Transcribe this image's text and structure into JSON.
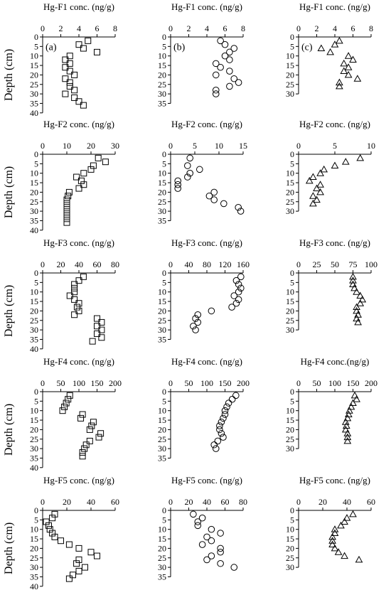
{
  "figure": {
    "ylabel": "Depth (cm)"
  },
  "panel_letters": [
    "(a)",
    "(b)",
    "(c)"
  ],
  "chart_data": [
    {
      "type": "scatter",
      "row": 0,
      "col": 0,
      "panel": "(a)",
      "title": "Hg-F1 conc. (ng/g)",
      "xlabel": "Hg-F1 conc. (ng/g)",
      "ylabel": "Depth (cm)",
      "marker": "square",
      "xlim": [
        0,
        8
      ],
      "xticks": [
        0,
        2,
        4,
        6,
        8
      ],
      "ylim": [
        0,
        40
      ],
      "yticks": [
        0,
        5,
        10,
        15,
        20,
        25,
        30,
        35,
        40
      ],
      "points": [
        [
          5.0,
          2
        ],
        [
          4.0,
          4
        ],
        [
          4.5,
          6
        ],
        [
          6.0,
          8
        ],
        [
          3.0,
          10
        ],
        [
          2.5,
          12
        ],
        [
          3.0,
          14
        ],
        [
          2.5,
          16
        ],
        [
          3.0,
          18
        ],
        [
          3.5,
          20
        ],
        [
          2.5,
          22
        ],
        [
          3.0,
          24
        ],
        [
          3.0,
          26
        ],
        [
          3.5,
          28
        ],
        [
          2.5,
          30
        ],
        [
          3.5,
          32
        ],
        [
          4.0,
          34
        ],
        [
          4.5,
          36
        ]
      ]
    },
    {
      "type": "scatter",
      "row": 0,
      "col": 1,
      "panel": "(b)",
      "title": "Hg-F1 conc. (ng/g)",
      "xlabel": "Hg-F1 conc. (ng/g)",
      "ylabel": "Depth (cm)",
      "marker": "circle",
      "xlim": [
        0,
        8
      ],
      "xticks": [
        0,
        2,
        4,
        6,
        8
      ],
      "ylim": [
        0,
        35
      ],
      "yticks": [
        0,
        5,
        10,
        15,
        20,
        25,
        30,
        35
      ],
      "points": [
        [
          5.5,
          2
        ],
        [
          6.0,
          4
        ],
        [
          7.0,
          6
        ],
        [
          6.5,
          8
        ],
        [
          6.0,
          10
        ],
        [
          6.5,
          12
        ],
        [
          5.0,
          14
        ],
        [
          5.5,
          16
        ],
        [
          6.5,
          18
        ],
        [
          5.0,
          20
        ],
        [
          7.0,
          22
        ],
        [
          7.5,
          24
        ],
        [
          6.5,
          26
        ],
        [
          5.0,
          28
        ],
        [
          5.0,
          30
        ]
      ]
    },
    {
      "type": "scatter",
      "row": 0,
      "col": 2,
      "panel": "(c)",
      "title": "Hg-F1 conc. (ng/g)",
      "xlabel": "Hg-F1 conc. (ng/g)",
      "ylabel": "Depth (cm)",
      "marker": "triangle",
      "xlim": [
        0,
        8
      ],
      "xticks": [
        0,
        2,
        4,
        6,
        8
      ],
      "ylim": [
        0,
        30
      ],
      "yticks": [
        0,
        5,
        10,
        15,
        20,
        25,
        30
      ],
      "points": [
        [
          4.5,
          2
        ],
        [
          4.0,
          4
        ],
        [
          2.5,
          6
        ],
        [
          3.5,
          8
        ],
        [
          5.5,
          10
        ],
        [
          6.0,
          12
        ],
        [
          5.0,
          14
        ],
        [
          5.5,
          16
        ],
        [
          5.0,
          18
        ],
        [
          5.5,
          20
        ],
        [
          6.5,
          22
        ],
        [
          4.5,
          24
        ],
        [
          4.5,
          26
        ]
      ]
    },
    {
      "type": "scatter",
      "row": 1,
      "col": 0,
      "title": "Hg-F2 conc. (ng/g)",
      "xlabel": "Hg-F2 conc. (ng/g)",
      "ylabel": "Depth (cm)",
      "marker": "square",
      "xlim": [
        0,
        30
      ],
      "xticks": [
        0,
        10,
        20,
        30
      ],
      "ylim": [
        0,
        40
      ],
      "yticks": [
        0,
        5,
        10,
        15,
        20,
        25,
        30,
        35,
        40
      ],
      "points": [
        [
          23,
          2
        ],
        [
          26,
          4
        ],
        [
          21,
          6
        ],
        [
          20,
          8
        ],
        [
          17,
          10
        ],
        [
          14,
          12
        ],
        [
          16,
          14
        ],
        [
          17,
          16
        ],
        [
          15,
          18
        ],
        [
          11,
          20
        ],
        [
          10.5,
          22
        ],
        [
          10,
          24
        ],
        [
          10,
          26
        ],
        [
          10,
          28
        ],
        [
          10,
          30
        ],
        [
          10,
          32
        ],
        [
          10,
          34
        ],
        [
          10,
          36
        ]
      ]
    },
    {
      "type": "scatter",
      "row": 1,
      "col": 1,
      "title": "Hg-F2 conc. (ng/g)",
      "xlabel": "Hg-F2 conc. (ng/g)",
      "ylabel": "Depth (cm)",
      "marker": "circle",
      "xlim": [
        0,
        15
      ],
      "xticks": [
        0,
        5,
        10,
        15
      ],
      "ylim": [
        0,
        35
      ],
      "yticks": [
        0,
        5,
        10,
        15,
        20,
        25,
        30,
        35
      ],
      "points": [
        [
          4,
          2
        ],
        [
          3.5,
          6
        ],
        [
          6,
          8
        ],
        [
          4,
          10
        ],
        [
          3.5,
          12
        ],
        [
          1.5,
          14
        ],
        [
          1.5,
          16
        ],
        [
          1.5,
          18
        ],
        [
          9,
          20
        ],
        [
          8,
          22
        ],
        [
          9,
          24
        ],
        [
          11,
          26
        ],
        [
          14,
          28
        ],
        [
          14.5,
          30
        ]
      ]
    },
    {
      "type": "scatter",
      "row": 1,
      "col": 2,
      "title": "Hg-F2 conc. (ng/g)",
      "xlabel": "Hg-F2 conc. (ng/g)",
      "ylabel": "Depth (cm)",
      "marker": "triangle",
      "xlim": [
        0,
        10
      ],
      "xticks": [
        0,
        5,
        10
      ],
      "ylim": [
        0,
        30
      ],
      "yticks": [
        0,
        5,
        10,
        15,
        20,
        25,
        30
      ],
      "points": [
        [
          8.5,
          2
        ],
        [
          6.5,
          4
        ],
        [
          5,
          6
        ],
        [
          3.5,
          8
        ],
        [
          3,
          10
        ],
        [
          2,
          12
        ],
        [
          1.5,
          14
        ],
        [
          3,
          16
        ],
        [
          2.5,
          18
        ],
        [
          3,
          20
        ],
        [
          2,
          22
        ],
        [
          2.5,
          24
        ],
        [
          2,
          26
        ]
      ]
    },
    {
      "type": "scatter",
      "row": 2,
      "col": 0,
      "title": "Hg-F3 conc. (ng/g)",
      "xlabel": "Hg-F3 conc. (ng/g)",
      "ylabel": "Depth (cm)",
      "marker": "square",
      "xlim": [
        0,
        80
      ],
      "xticks": [
        0,
        20,
        40,
        60,
        80
      ],
      "ylim": [
        0,
        40
      ],
      "yticks": [
        0,
        5,
        10,
        15,
        20,
        25,
        30,
        35,
        40
      ],
      "points": [
        [
          45,
          2
        ],
        [
          40,
          4
        ],
        [
          35,
          6
        ],
        [
          35,
          8
        ],
        [
          35,
          10
        ],
        [
          30,
          12
        ],
        [
          35,
          14
        ],
        [
          40,
          16
        ],
        [
          38,
          18
        ],
        [
          40,
          20
        ],
        [
          35,
          22
        ],
        [
          60,
          24
        ],
        [
          65,
          26
        ],
        [
          60,
          28
        ],
        [
          65,
          30
        ],
        [
          60,
          32
        ],
        [
          65,
          34
        ],
        [
          55,
          36
        ]
      ]
    },
    {
      "type": "scatter",
      "row": 2,
      "col": 1,
      "title": "Hg-F3 conc. (ng/g)",
      "xlabel": "Hg-F3 conc. (ng/g)",
      "ylabel": "Depth (cm)",
      "marker": "circle",
      "xlim": [
        0,
        160
      ],
      "xticks": [
        0,
        40,
        80,
        120,
        160
      ],
      "ylim": [
        0,
        35
      ],
      "yticks": [
        0,
        5,
        10,
        15,
        20,
        25,
        30,
        35
      ],
      "points": [
        [
          155,
          2
        ],
        [
          145,
          4
        ],
        [
          150,
          6
        ],
        [
          155,
          8
        ],
        [
          150,
          10
        ],
        [
          140,
          12
        ],
        [
          150,
          14
        ],
        [
          145,
          16
        ],
        [
          135,
          18
        ],
        [
          90,
          20
        ],
        [
          60,
          22
        ],
        [
          55,
          24
        ],
        [
          60,
          26
        ],
        [
          50,
          28
        ],
        [
          55,
          30
        ]
      ]
    },
    {
      "type": "scatter",
      "row": 2,
      "col": 2,
      "title": "Hg-F3 conc. (ng/g)",
      "xlabel": "Hg-F3 conc. (ng/g)",
      "ylabel": "Depth (cm)",
      "marker": "triangle",
      "xlim": [
        0,
        100
      ],
      "xticks": [
        0,
        25,
        50,
        75,
        100
      ],
      "ylim": [
        0,
        30
      ],
      "yticks": [
        0,
        5,
        10,
        15,
        20,
        25,
        30
      ],
      "points": [
        [
          75,
          2
        ],
        [
          75,
          4
        ],
        [
          75,
          6
        ],
        [
          77,
          8
        ],
        [
          80,
          10
        ],
        [
          85,
          12
        ],
        [
          88,
          14
        ],
        [
          85,
          16
        ],
        [
          80,
          18
        ],
        [
          80,
          20
        ],
        [
          82,
          22
        ],
        [
          80,
          24
        ],
        [
          82,
          26
        ]
      ]
    },
    {
      "type": "scatter",
      "row": 3,
      "col": 0,
      "title": "Hg-F4 conc. (ng/g)",
      "xlabel": "Hg-F4 conc. (ng/g)",
      "ylabel": "Depth (cm)",
      "marker": "square",
      "xlim": [
        0,
        200
      ],
      "xticks": [
        0,
        50,
        100,
        150,
        200
      ],
      "ylim": [
        0,
        40
      ],
      "yticks": [
        0,
        5,
        10,
        15,
        20,
        25,
        30,
        35,
        40
      ],
      "points": [
        [
          75,
          2
        ],
        [
          70,
          4
        ],
        [
          65,
          6
        ],
        [
          60,
          8
        ],
        [
          55,
          10
        ],
        [
          110,
          12
        ],
        [
          105,
          14
        ],
        [
          140,
          16
        ],
        [
          135,
          18
        ],
        [
          130,
          20
        ],
        [
          160,
          22
        ],
        [
          155,
          24
        ],
        [
          130,
          26
        ],
        [
          120,
          28
        ],
        [
          115,
          30
        ],
        [
          110,
          32
        ],
        [
          110,
          34
        ]
      ]
    },
    {
      "type": "scatter",
      "row": 3,
      "col": 1,
      "title": "Hg-F4 conc. (ng/g)",
      "xlabel": "Hg-F4 conc. (ng/g)",
      "ylabel": "Depth (cm)",
      "marker": "circle",
      "xlim": [
        0,
        200
      ],
      "xticks": [
        0,
        50,
        100,
        150,
        200
      ],
      "ylim": [
        0,
        35
      ],
      "yticks": [
        0,
        5,
        10,
        15,
        20,
        25,
        30,
        35
      ],
      "points": [
        [
          180,
          2
        ],
        [
          170,
          4
        ],
        [
          160,
          6
        ],
        [
          155,
          8
        ],
        [
          150,
          10
        ],
        [
          150,
          12
        ],
        [
          145,
          14
        ],
        [
          140,
          16
        ],
        [
          135,
          18
        ],
        [
          135,
          20
        ],
        [
          140,
          22
        ],
        [
          145,
          24
        ],
        [
          130,
          26
        ],
        [
          120,
          28
        ],
        [
          125,
          30
        ]
      ]
    },
    {
      "type": "scatter",
      "row": 3,
      "col": 2,
      "title": "Hg-F4 conc.(ng/g)",
      "xlabel": "Hg-F4 conc.(ng/g)",
      "ylabel": "Depth (cm)",
      "marker": "triangle",
      "xlim": [
        0,
        200
      ],
      "xticks": [
        0,
        50,
        100,
        150,
        200
      ],
      "ylim": [
        0,
        30
      ],
      "yticks": [
        0,
        5,
        10,
        15,
        20,
        25,
        30
      ],
      "points": [
        [
          155,
          2
        ],
        [
          160,
          4
        ],
        [
          150,
          6
        ],
        [
          145,
          8
        ],
        [
          140,
          10
        ],
        [
          138,
          12
        ],
        [
          135,
          14
        ],
        [
          130,
          16
        ],
        [
          132,
          18
        ],
        [
          130,
          20
        ],
        [
          135,
          22
        ],
        [
          135,
          24
        ],
        [
          135,
          26
        ]
      ]
    },
    {
      "type": "scatter",
      "row": 4,
      "col": 0,
      "title": "Hg-F5 conc. (ng/g)",
      "xlabel": "Hg-F5 conc. (ng/g)",
      "ylabel": "Depth (cm)",
      "marker": "square",
      "xlim": [
        0,
        60
      ],
      "xticks": [
        0,
        20,
        40,
        60
      ],
      "ylim": [
        0,
        40
      ],
      "yticks": [
        0,
        5,
        10,
        15,
        20,
        25,
        30,
        35,
        40
      ],
      "points": [
        [
          10,
          2
        ],
        [
          8,
          4
        ],
        [
          3,
          6
        ],
        [
          5,
          8
        ],
        [
          6,
          10
        ],
        [
          8,
          12
        ],
        [
          10,
          14
        ],
        [
          15,
          16
        ],
        [
          22,
          18
        ],
        [
          30,
          20
        ],
        [
          40,
          22
        ],
        [
          45,
          24
        ],
        [
          30,
          26
        ],
        [
          28,
          28
        ],
        [
          35,
          30
        ],
        [
          30,
          32
        ],
        [
          25,
          34
        ],
        [
          22,
          36
        ]
      ]
    },
    {
      "type": "scatter",
      "row": 4,
      "col": 1,
      "title": "Hg-F5 conc. (ng/g)",
      "xlabel": "Hg-F5 conc. (ng/g)",
      "ylabel": "Depth (cm)",
      "marker": "circle",
      "xlim": [
        0,
        80
      ],
      "xticks": [
        0,
        20,
        40,
        60,
        80
      ],
      "ylim": [
        0,
        35
      ],
      "yticks": [
        0,
        5,
        10,
        15,
        20,
        25,
        30,
        35
      ],
      "points": [
        [
          25,
          2
        ],
        [
          35,
          4
        ],
        [
          30,
          6
        ],
        [
          30,
          8
        ],
        [
          45,
          10
        ],
        [
          55,
          12
        ],
        [
          40,
          14
        ],
        [
          45,
          16
        ],
        [
          35,
          18
        ],
        [
          55,
          20
        ],
        [
          55,
          22
        ],
        [
          45,
          24
        ],
        [
          40,
          26
        ],
        [
          55,
          28
        ],
        [
          70,
          30
        ]
      ]
    },
    {
      "type": "scatter",
      "row": 4,
      "col": 2,
      "title": "Hg-F5 conc. (ng/g)",
      "xlabel": "Hg-F5 conc. (ng/g)",
      "ylabel": "Depth (cm)",
      "marker": "triangle",
      "xlim": [
        0,
        60
      ],
      "xticks": [
        0,
        20,
        40,
        60
      ],
      "ylim": [
        0,
        30
      ],
      "yticks": [
        0,
        5,
        10,
        15,
        20,
        25,
        30
      ],
      "points": [
        [
          45,
          2
        ],
        [
          40,
          4
        ],
        [
          38,
          6
        ],
        [
          35,
          8
        ],
        [
          30,
          10
        ],
        [
          30,
          12
        ],
        [
          28,
          14
        ],
        [
          28,
          16
        ],
        [
          28,
          18
        ],
        [
          30,
          20
        ],
        [
          33,
          22
        ],
        [
          38,
          24
        ],
        [
          50,
          26
        ]
      ]
    }
  ]
}
